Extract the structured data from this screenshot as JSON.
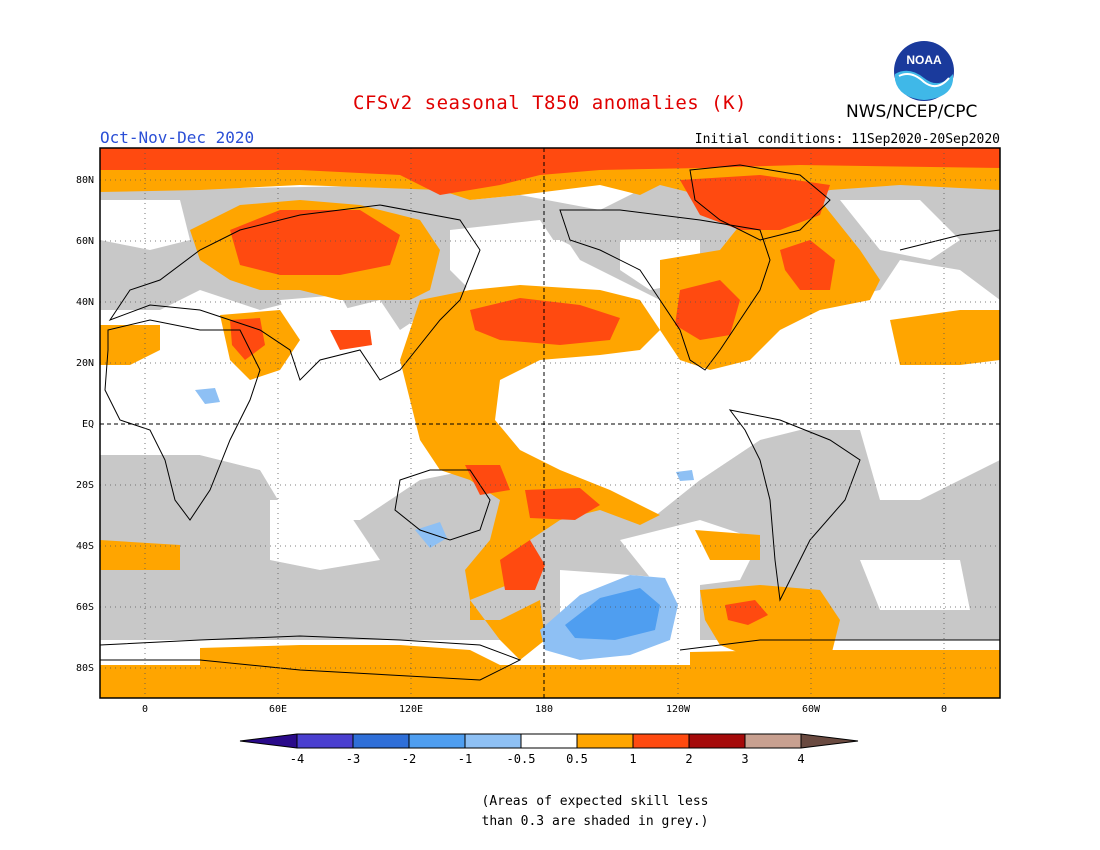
{
  "header": {
    "title": "CFSv2 seasonal T850 anomalies (K)",
    "season": "Oct-Nov-Dec 2020",
    "initial_conditions": "Initial conditions: 11Sep2020-20Sep2020",
    "agency": "NWS/NCEP/CPC",
    "logo_text": "NOAA"
  },
  "axes": {
    "lat_labels": [
      "80N",
      "60N",
      "40N",
      "20N",
      "EQ",
      "20S",
      "40S",
      "60S",
      "80S"
    ],
    "lon_labels": [
      "0",
      "60E",
      "120E",
      "180",
      "120W",
      "60W",
      "0"
    ]
  },
  "legend": {
    "labels": [
      "-4",
      "-3",
      "-2",
      "-1",
      "-0.5",
      "0.5",
      "1",
      "2",
      "3",
      "4"
    ],
    "colors": [
      "#2a0a8a",
      "#4a3fcf",
      "#2f6fd8",
      "#4f9ef0",
      "#8ec0f4",
      "#ffffff",
      "#ffa500",
      "#ff4a10",
      "#a50a0a",
      "#c8a090",
      "#6a4a40"
    ]
  },
  "note": {
    "line1": "(Areas of expected skill less",
    "line2": "than 0.3 are shaded in grey.)"
  },
  "colors": {
    "grey": "#c8c8c8",
    "orange": "#ffa500",
    "red": "#ff4a10",
    "blue_light": "#8ec0f4",
    "blue_mid": "#4f9ef0"
  }
}
